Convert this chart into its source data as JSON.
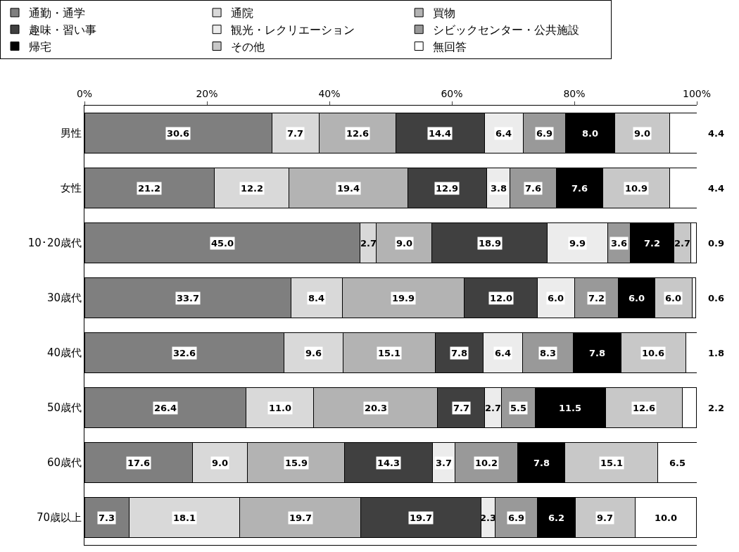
{
  "chart_data": {
    "type": "bar",
    "orientation": "horizontal",
    "stacked": true,
    "legend": "top",
    "categories": [
      "男性",
      "女性",
      "10･20歳代",
      "30歳代",
      "40歳代",
      "50歳代",
      "60歳代",
      "70歳以上"
    ],
    "xlim": [
      0,
      100
    ],
    "xticks": [
      {
        "value": 0,
        "label": "0%"
      },
      {
        "value": 20,
        "label": "20%"
      },
      {
        "value": 40,
        "label": "40%"
      },
      {
        "value": 60,
        "label": "60%"
      },
      {
        "value": 80,
        "label": "80%"
      },
      {
        "value": 100,
        "label": "100%"
      }
    ],
    "series": [
      {
        "name": "通勤・通学",
        "color": "#7f7f7f",
        "values": [
          30.6,
          21.2,
          45.0,
          33.7,
          32.6,
          26.4,
          17.6,
          7.3
        ],
        "value_labels": [
          "30.6",
          "21.2",
          "45.0",
          "33.7",
          "32.6",
          "26.4",
          "17.6",
          "7.3"
        ]
      },
      {
        "name": "通院",
        "color": "#d9d9d9",
        "values": [
          7.7,
          12.2,
          2.7,
          8.4,
          9.6,
          11.0,
          9.0,
          18.1
        ],
        "value_labels": [
          "7.7",
          "12.2",
          "2.7",
          "8.4",
          "9.6",
          "11.0",
          "9.0",
          "18.1"
        ]
      },
      {
        "name": "買物",
        "color": "#b3b3b3",
        "values": [
          12.6,
          19.4,
          9.0,
          19.9,
          15.1,
          20.3,
          15.9,
          19.7
        ],
        "value_labels": [
          "12.6",
          "19.4",
          "9.0",
          "19.9",
          "15.1",
          "20.3",
          "15.9",
          "19.7"
        ]
      },
      {
        "name": "趣味・習い事",
        "color": "#404040",
        "values": [
          14.4,
          12.9,
          18.9,
          12.0,
          7.8,
          7.7,
          14.3,
          19.7
        ],
        "value_labels": [
          "14.4",
          "12.9",
          "18.9",
          "12.0",
          "7.8",
          "7.7",
          "14.3",
          "19.7"
        ]
      },
      {
        "name": "観光・レクリエーション",
        "color": "#ececec",
        "values": [
          6.4,
          3.8,
          9.9,
          6.0,
          6.4,
          2.7,
          3.7,
          2.3
        ],
        "value_labels": [
          "6.4",
          "3.8",
          "9.9",
          "6.0",
          "6.4",
          "2.7",
          "3.7",
          "2.3"
        ]
      },
      {
        "name": "シビックセンター・公共施設",
        "color": "#999999",
        "values": [
          6.9,
          7.6,
          3.6,
          7.2,
          8.3,
          5.5,
          10.2,
          6.9
        ],
        "value_labels": [
          "6.9",
          "7.6",
          "3.6",
          "7.2",
          "8.3",
          "5.5",
          "10.2",
          "6.9"
        ]
      },
      {
        "name": "帰宅",
        "color": "#000000",
        "values": [
          8.0,
          7.6,
          7.2,
          6.0,
          7.8,
          11.5,
          7.8,
          6.2
        ],
        "value_labels": [
          "8.0",
          "7.6",
          "7.2",
          "6.0",
          "7.8",
          "11.5",
          "7.8",
          "6.2"
        ]
      },
      {
        "name": "その他",
        "color": "#c8c8c8",
        "values": [
          9.0,
          10.9,
          2.7,
          6.0,
          10.6,
          12.6,
          15.1,
          9.7
        ],
        "value_labels": [
          "9.0",
          "10.9",
          "2.7",
          "6.0",
          "10.6",
          "12.6",
          "15.1",
          "9.7"
        ]
      },
      {
        "name": "無回答",
        "color": "#ffffff",
        "values": [
          4.4,
          4.4,
          0.9,
          0.6,
          1.8,
          2.2,
          6.5,
          10.0
        ],
        "value_labels": [
          "4.4",
          "4.4",
          "0.9",
          "0.6",
          "1.8",
          "2.2",
          "6.5",
          "10.0"
        ]
      }
    ]
  }
}
